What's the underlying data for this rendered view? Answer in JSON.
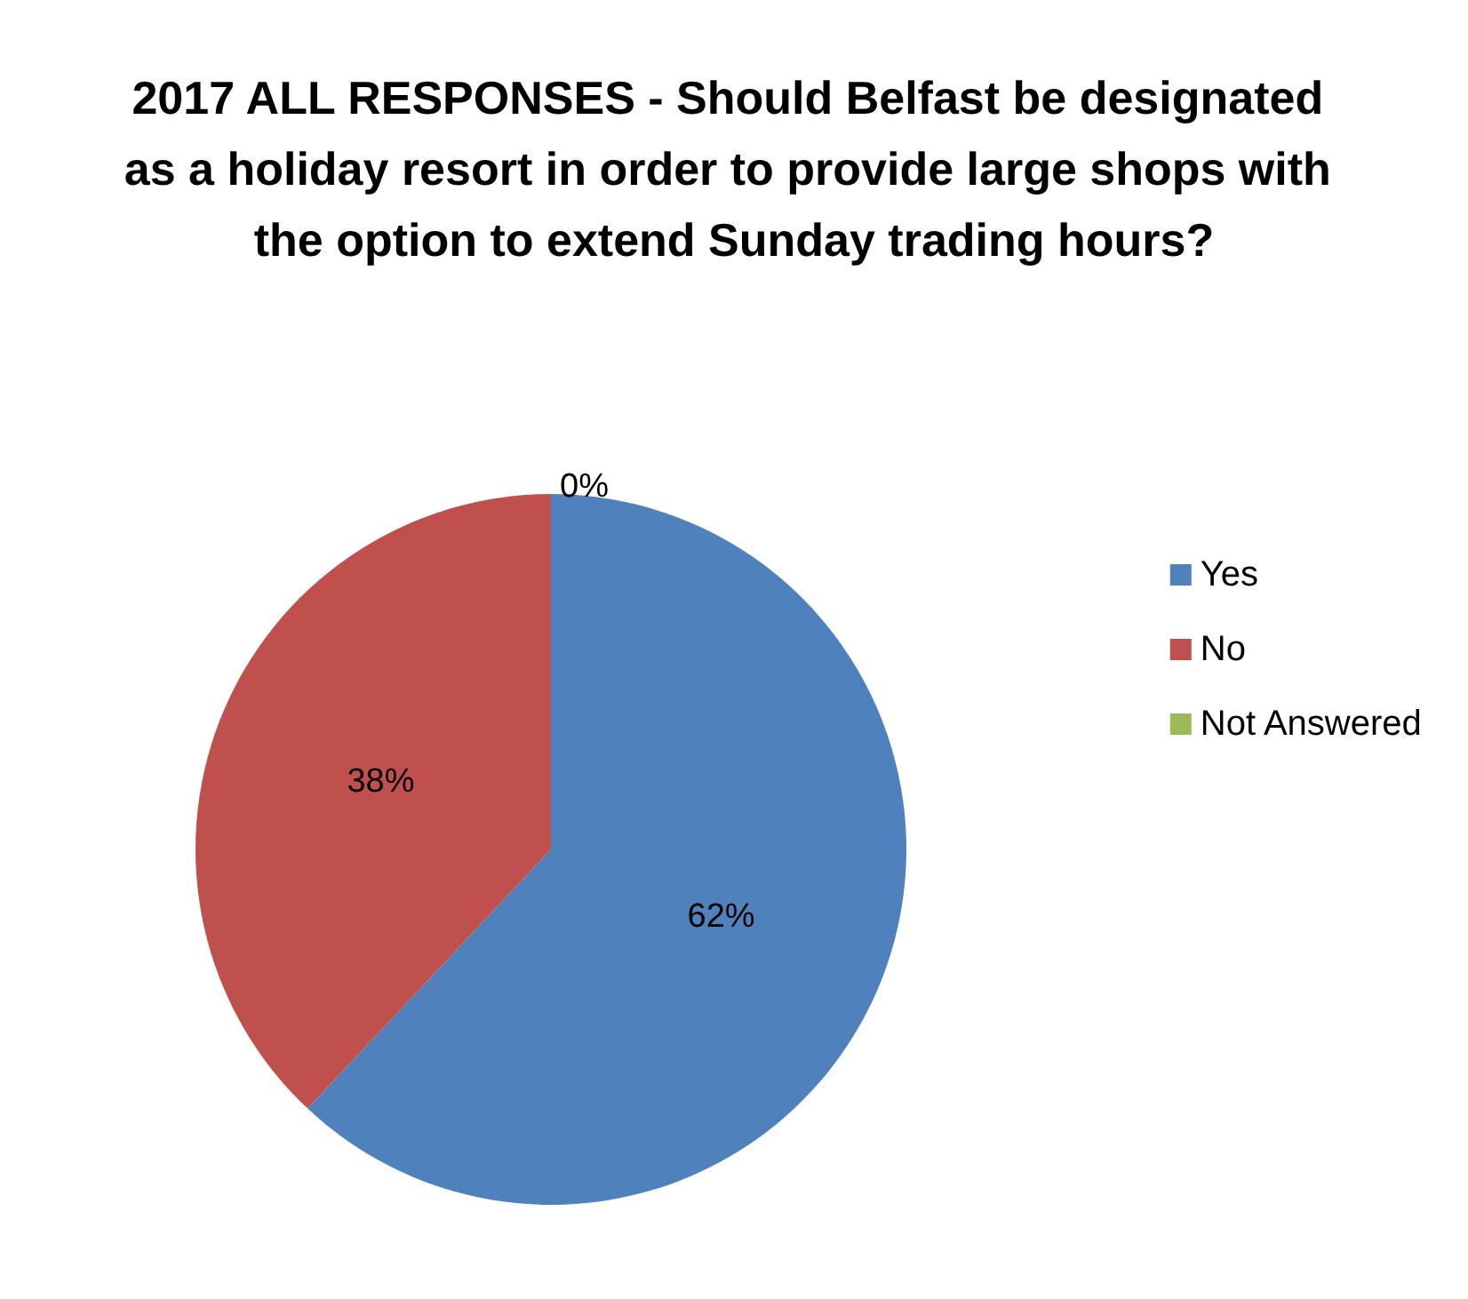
{
  "chart_data": {
    "type": "pie",
    "title": "2017 ALL RESPONSES - Should Belfast be designated as a holiday resort in order to provide large shops with the option to extend Sunday trading hours?",
    "categories": [
      "Yes",
      "No",
      "Not Answered"
    ],
    "values": [
      62,
      38,
      0
    ],
    "colors": [
      "#4f81bd",
      "#c0504d",
      "#9bbb59"
    ],
    "value_labels": [
      "62%",
      "38%",
      "0%"
    ],
    "legend": "right"
  }
}
